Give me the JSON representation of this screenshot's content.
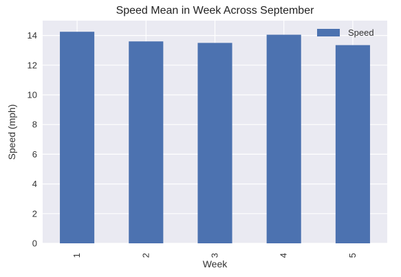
{
  "chart_data": {
    "type": "bar",
    "title": "Speed Mean in Week Across September",
    "xlabel": "Week",
    "ylabel": "Speed (mph)",
    "categories": [
      "1",
      "2",
      "3",
      "4",
      "5"
    ],
    "series": [
      {
        "name": "Speed",
        "values": [
          14.25,
          13.6,
          13.5,
          14.05,
          13.35
        ]
      }
    ],
    "ylim": [
      0,
      15
    ],
    "yticks": [
      "0",
      "2",
      "4",
      "6",
      "8",
      "10",
      "12",
      "14"
    ],
    "grid": true,
    "legend_position": "top-right",
    "colors": {
      "bar": "#4C72B0",
      "plot_background": "#EAEAF2",
      "grid": "#FFFFFF"
    }
  }
}
